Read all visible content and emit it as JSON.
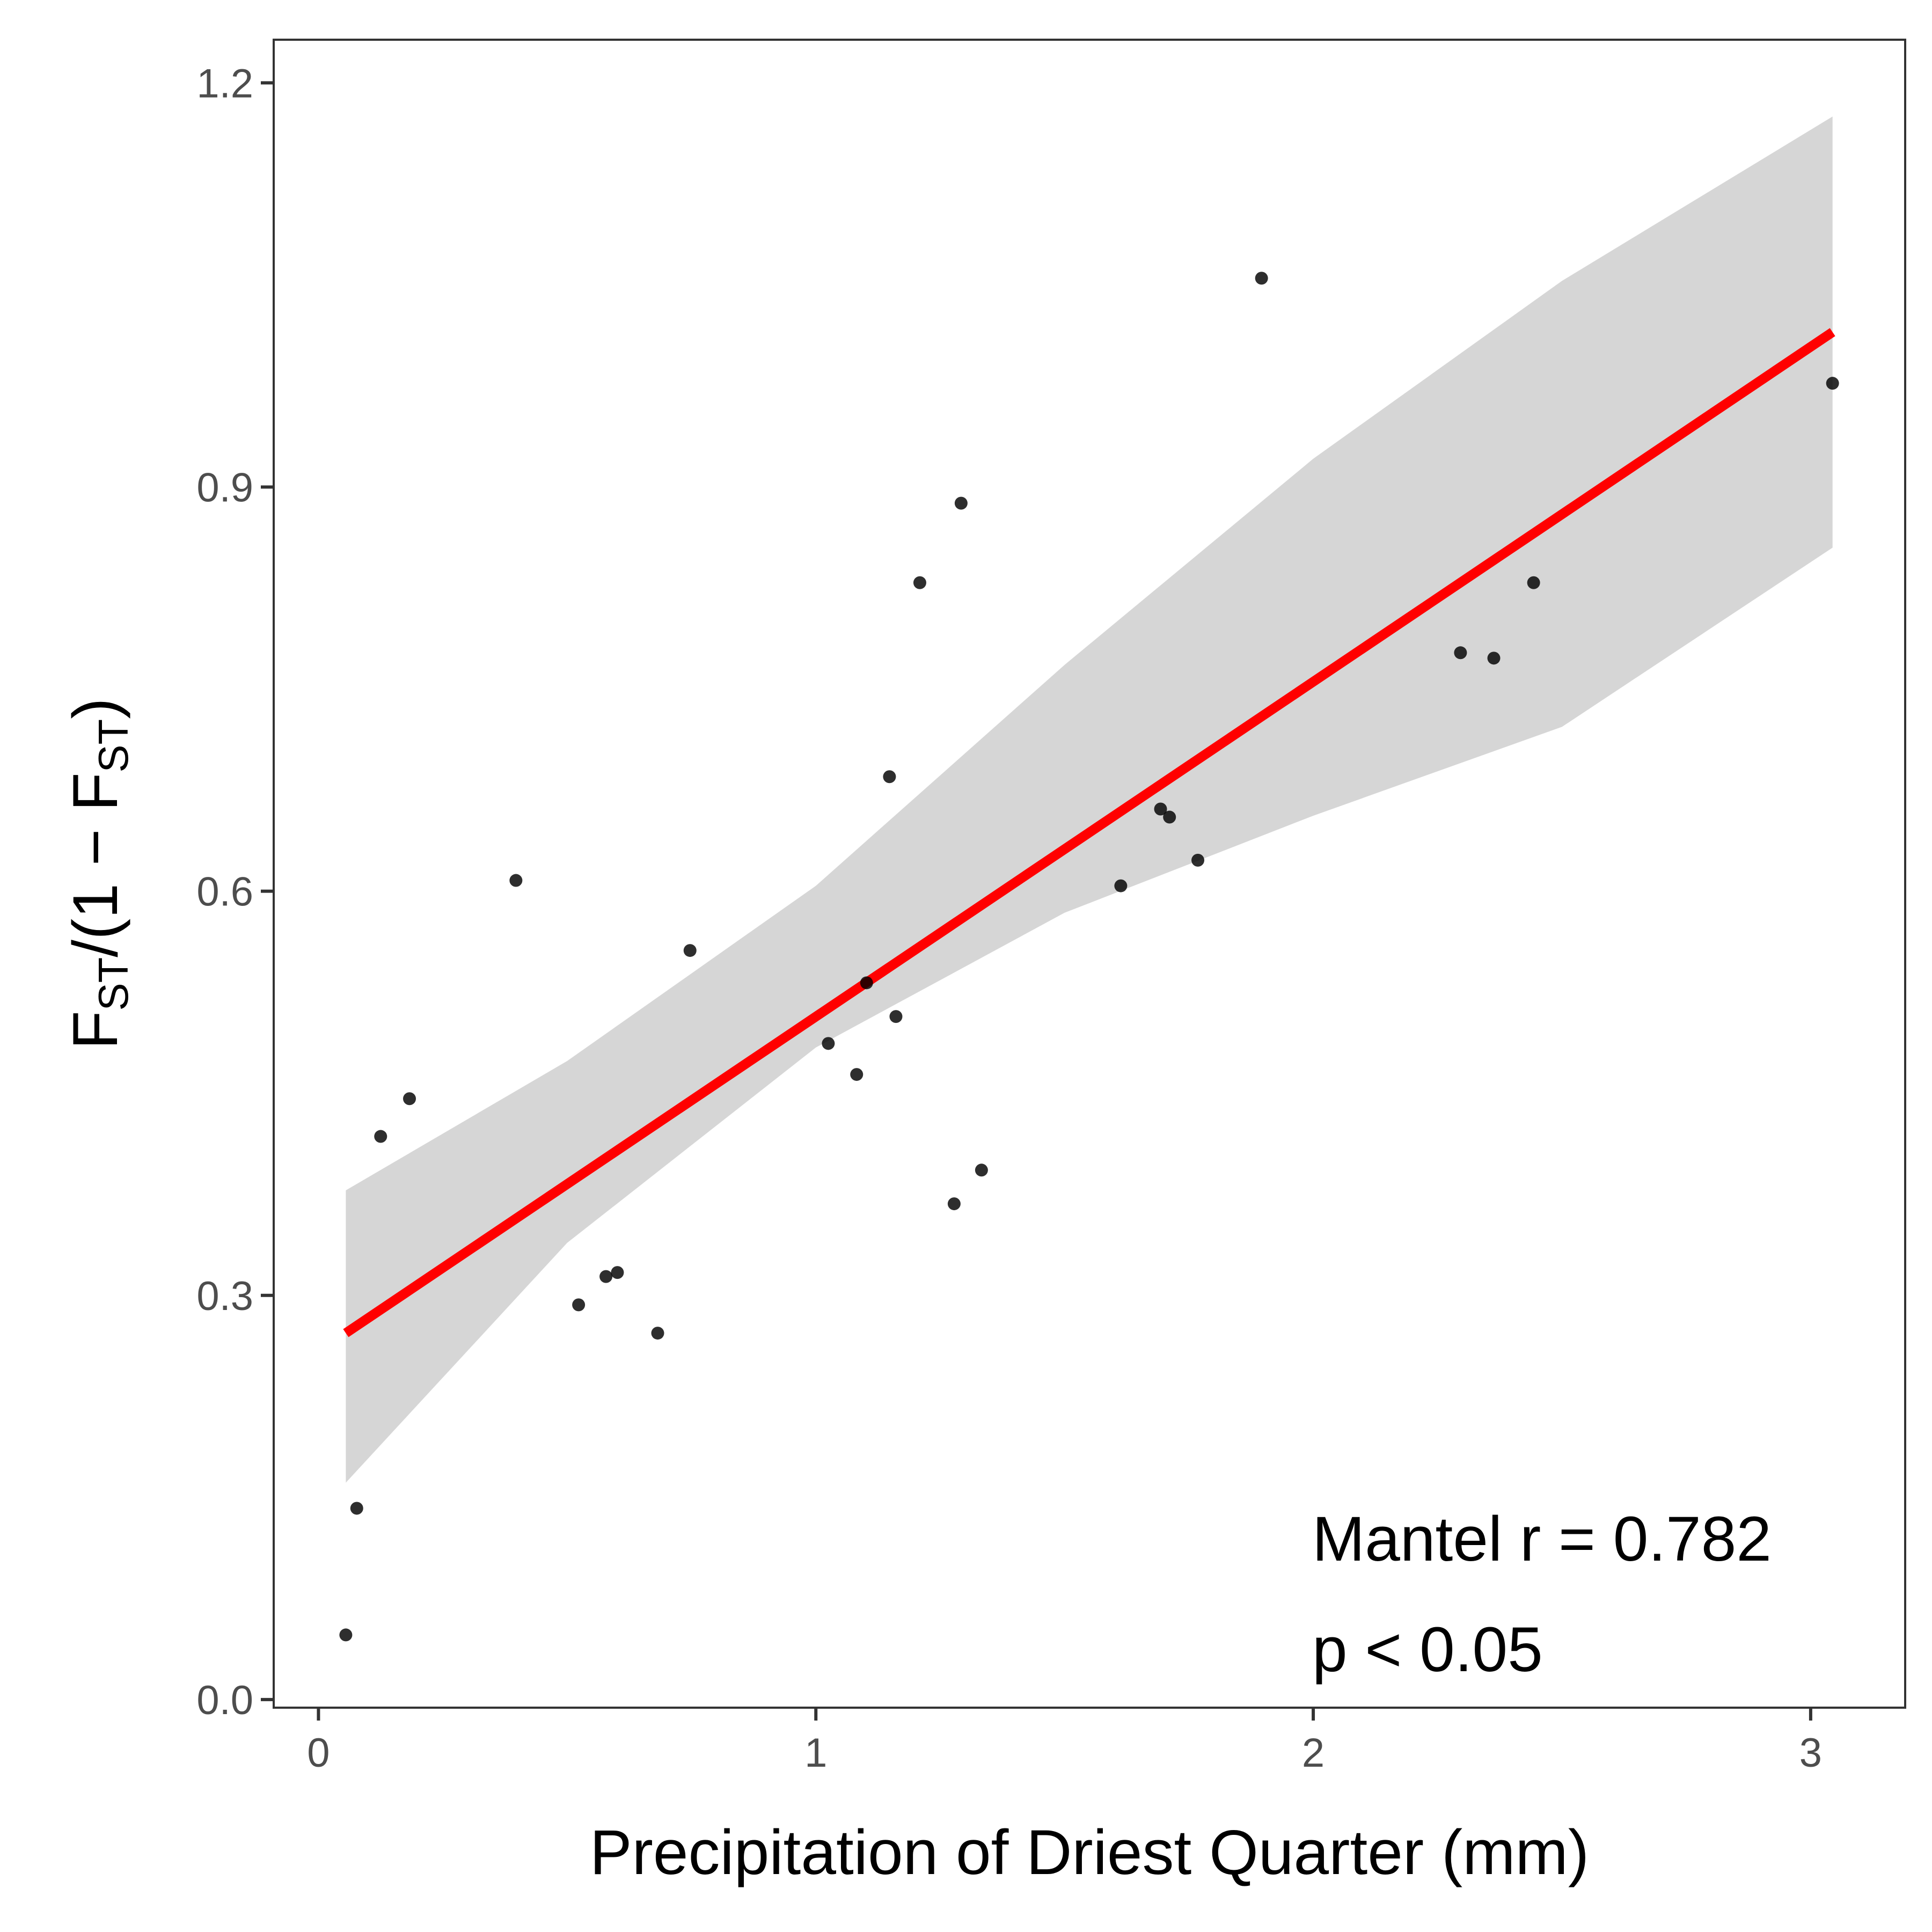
{
  "chart_data": {
    "type": "scatter",
    "xlabel": "Precipitation of Driest Quarter (mm)",
    "ylabel": {
      "prefix": "F",
      "sub1": "ST",
      "middle": "/(1 − F",
      "sub2": "ST",
      "suffix": ")"
    },
    "xlim": [
      -0.09,
      3.19
    ],
    "ylim": [
      -0.006,
      1.232
    ],
    "xticks": [
      0,
      1,
      2,
      3
    ],
    "xtick_labels": [
      "0",
      "1",
      "2",
      "3"
    ],
    "yticks": [
      0.0,
      0.3,
      0.6,
      0.9,
      1.2
    ],
    "ytick_labels": [
      "0.0",
      "0.3",
      "0.6",
      "0.9",
      "1.2"
    ],
    "grid": false,
    "points": [
      {
        "x": 0.055,
        "y": 0.048
      },
      {
        "x": 0.077,
        "y": 0.142
      },
      {
        "x": 0.125,
        "y": 0.418
      },
      {
        "x": 0.183,
        "y": 0.446
      },
      {
        "x": 0.397,
        "y": 0.608
      },
      {
        "x": 0.523,
        "y": 0.293
      },
      {
        "x": 0.578,
        "y": 0.314
      },
      {
        "x": 0.601,
        "y": 0.317
      },
      {
        "x": 0.682,
        "y": 0.272
      },
      {
        "x": 0.747,
        "y": 0.556
      },
      {
        "x": 1.025,
        "y": 0.487
      },
      {
        "x": 1.082,
        "y": 0.464
      },
      {
        "x": 1.102,
        "y": 0.532
      },
      {
        "x": 1.148,
        "y": 0.685
      },
      {
        "x": 1.161,
        "y": 0.507
      },
      {
        "x": 1.209,
        "y": 0.829
      },
      {
        "x": 1.278,
        "y": 0.368
      },
      {
        "x": 1.292,
        "y": 0.888
      },
      {
        "x": 1.333,
        "y": 0.393
      },
      {
        "x": 1.613,
        "y": 0.604
      },
      {
        "x": 1.693,
        "y": 0.661
      },
      {
        "x": 1.711,
        "y": 0.655
      },
      {
        "x": 1.768,
        "y": 0.623
      },
      {
        "x": 1.896,
        "y": 1.055
      },
      {
        "x": 2.296,
        "y": 0.777
      },
      {
        "x": 2.363,
        "y": 0.773
      },
      {
        "x": 2.443,
        "y": 0.829
      },
      {
        "x": 3.044,
        "y": 0.977
      }
    ],
    "fit_line": {
      "x": [
        0.055,
        3.044
      ],
      "y": [
        0.272,
        1.015
      ],
      "color": "#ff0000"
    },
    "confidence_band": {
      "x": [
        0.055,
        0.5,
        1.0,
        1.5,
        2.0,
        2.5,
        3.044
      ],
      "upper": [
        0.378,
        0.474,
        0.604,
        0.768,
        0.921,
        1.053,
        1.175
      ],
      "lower": [
        0.161,
        0.339,
        0.484,
        0.584,
        0.656,
        0.722,
        0.855
      ],
      "color": "#d6d6d6"
    },
    "annotations": [
      "Mantel r = 0.782",
      "p < 0.05"
    ]
  }
}
